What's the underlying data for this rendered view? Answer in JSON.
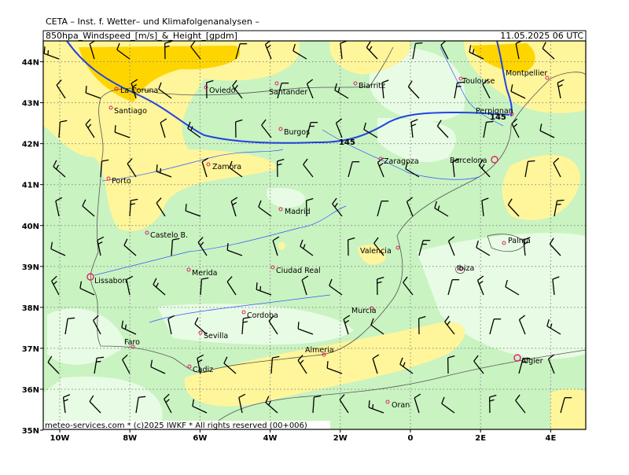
{
  "header": {
    "text": "CETA – Inst. f. Wetter– und Klimafolgenanalysen –"
  },
  "title_bar": {
    "left": "850hpa_Windspeed_[m/s]_&_Height_[gpdm]",
    "right": "11.05.2025 06 UTC"
  },
  "axes": {
    "x_ticks": [
      {
        "value": -10,
        "label": "10W"
      },
      {
        "value": -8,
        "label": "8W"
      },
      {
        "value": -6,
        "label": "6W"
      },
      {
        "value": -4,
        "label": "4W"
      },
      {
        "value": -2,
        "label": "2W"
      },
      {
        "value": 0,
        "label": "0"
      },
      {
        "value": 2,
        "label": "2E"
      },
      {
        "value": 4,
        "label": "4E"
      }
    ],
    "y_ticks": [
      {
        "value": 44,
        "label": "44N"
      },
      {
        "value": 43,
        "label": "43N"
      },
      {
        "value": 42,
        "label": "42N"
      },
      {
        "value": 41,
        "label": "41N"
      },
      {
        "value": 40,
        "label": "40N"
      },
      {
        "value": 39,
        "label": "39N"
      },
      {
        "value": 38,
        "label": "38N"
      },
      {
        "value": 37,
        "label": "37N"
      },
      {
        "value": 36,
        "label": "36N"
      },
      {
        "value": 35,
        "label": "35N"
      }
    ]
  },
  "contour_labels": [
    "145",
    "145"
  ],
  "cities": [
    "La Coruna",
    "Santiago",
    "Oviedo",
    "Santander",
    "Biarritz",
    "Toulouse",
    "Montpellier",
    "Perpignan",
    "Burgos",
    "Zaragoza",
    "Barcelona",
    "Zamora",
    "Porto",
    "Madrid",
    "Castelo B.",
    "Palma",
    "Valencia",
    "Lissabon",
    "Merida",
    "Ciudad Real",
    "Ibiza",
    "Cordoba",
    "Murcia",
    "Sevilla",
    "Faro",
    "Almeria",
    "Cadiz",
    "Algier",
    "Oran"
  ],
  "footer": {
    "text": "meteo-services.com * (c)2025 IWKF * All rights reserved (00+006)"
  }
}
